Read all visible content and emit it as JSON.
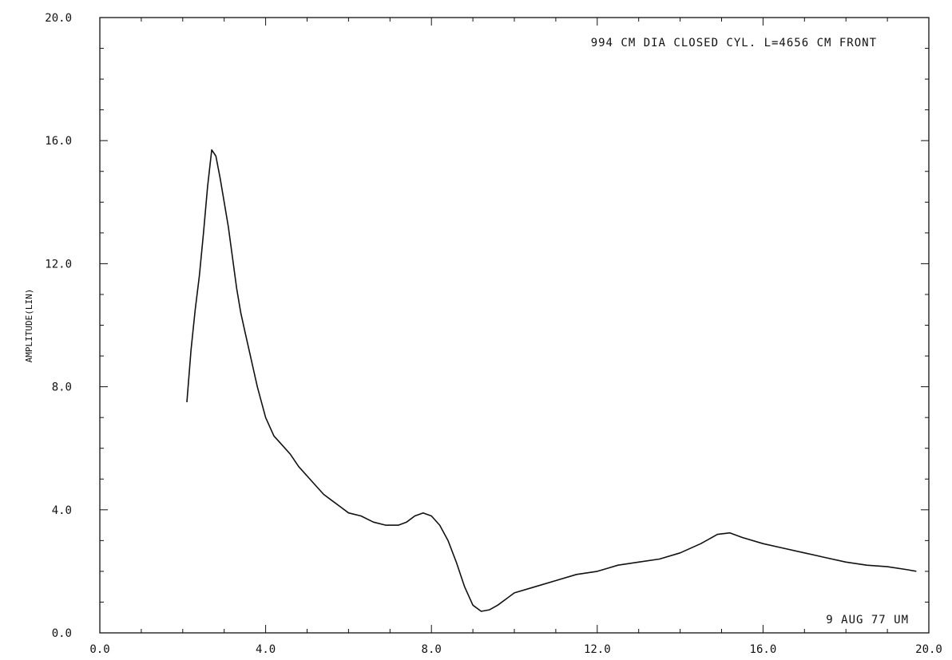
{
  "chart_data": {
    "type": "line",
    "title": "",
    "xlabel": "",
    "ylabel": "AMPLITUDE(LIN)",
    "xlim": [
      0,
      20
    ],
    "ylim": [
      0,
      20
    ],
    "xticks": [
      "0.0",
      "4.0",
      "8.0",
      "12.0",
      "16.0",
      "20.0"
    ],
    "yticks": [
      "0.0",
      "4.0",
      "8.0",
      "12.0",
      "16.0",
      "20.0"
    ],
    "grid": false,
    "annotations": {
      "top_right": "994 CM DIA CLOSED CYL. L=4656 CM FRONT",
      "bottom_right": "9 AUG 77 UM"
    },
    "series": [
      {
        "x": [
          2.1,
          2.2,
          2.3,
          2.4,
          2.5,
          2.6,
          2.7,
          2.8,
          2.9,
          3.0,
          3.1,
          3.2,
          3.3,
          3.4,
          3.5,
          3.6,
          3.7,
          3.8,
          3.9,
          4.0,
          4.2,
          4.4,
          4.6,
          4.8,
          5.0,
          5.2,
          5.4,
          5.6,
          5.8,
          6.0,
          6.3,
          6.6,
          6.9,
          7.2,
          7.4,
          7.6,
          7.8,
          8.0,
          8.2,
          8.4,
          8.6,
          8.8,
          9.0,
          9.2,
          9.4,
          9.6,
          9.8,
          10.0,
          10.5,
          11.0,
          11.5,
          12.0,
          12.5,
          13.0,
          13.5,
          14.0,
          14.5,
          14.9,
          15.2,
          15.5,
          16.0,
          16.5,
          17.0,
          17.5,
          18.0,
          18.5,
          19.0,
          19.5,
          19.7
        ],
        "y": [
          7.5,
          9.2,
          10.5,
          11.6,
          13.0,
          14.5,
          15.7,
          15.5,
          14.8,
          14.0,
          13.2,
          12.2,
          11.2,
          10.4,
          9.8,
          9.2,
          8.6,
          8.0,
          7.5,
          7.0,
          6.4,
          6.1,
          5.8,
          5.4,
          5.1,
          4.8,
          4.5,
          4.3,
          4.1,
          3.9,
          3.8,
          3.6,
          3.5,
          3.5,
          3.6,
          3.8,
          3.9,
          3.8,
          3.5,
          3.0,
          2.3,
          1.5,
          0.9,
          0.7,
          0.75,
          0.9,
          1.1,
          1.3,
          1.5,
          1.7,
          1.9,
          2.0,
          2.2,
          2.3,
          2.4,
          2.6,
          2.9,
          3.2,
          3.25,
          3.1,
          2.9,
          2.75,
          2.6,
          2.45,
          2.3,
          2.2,
          2.15,
          2.05,
          2.0
        ]
      }
    ]
  }
}
